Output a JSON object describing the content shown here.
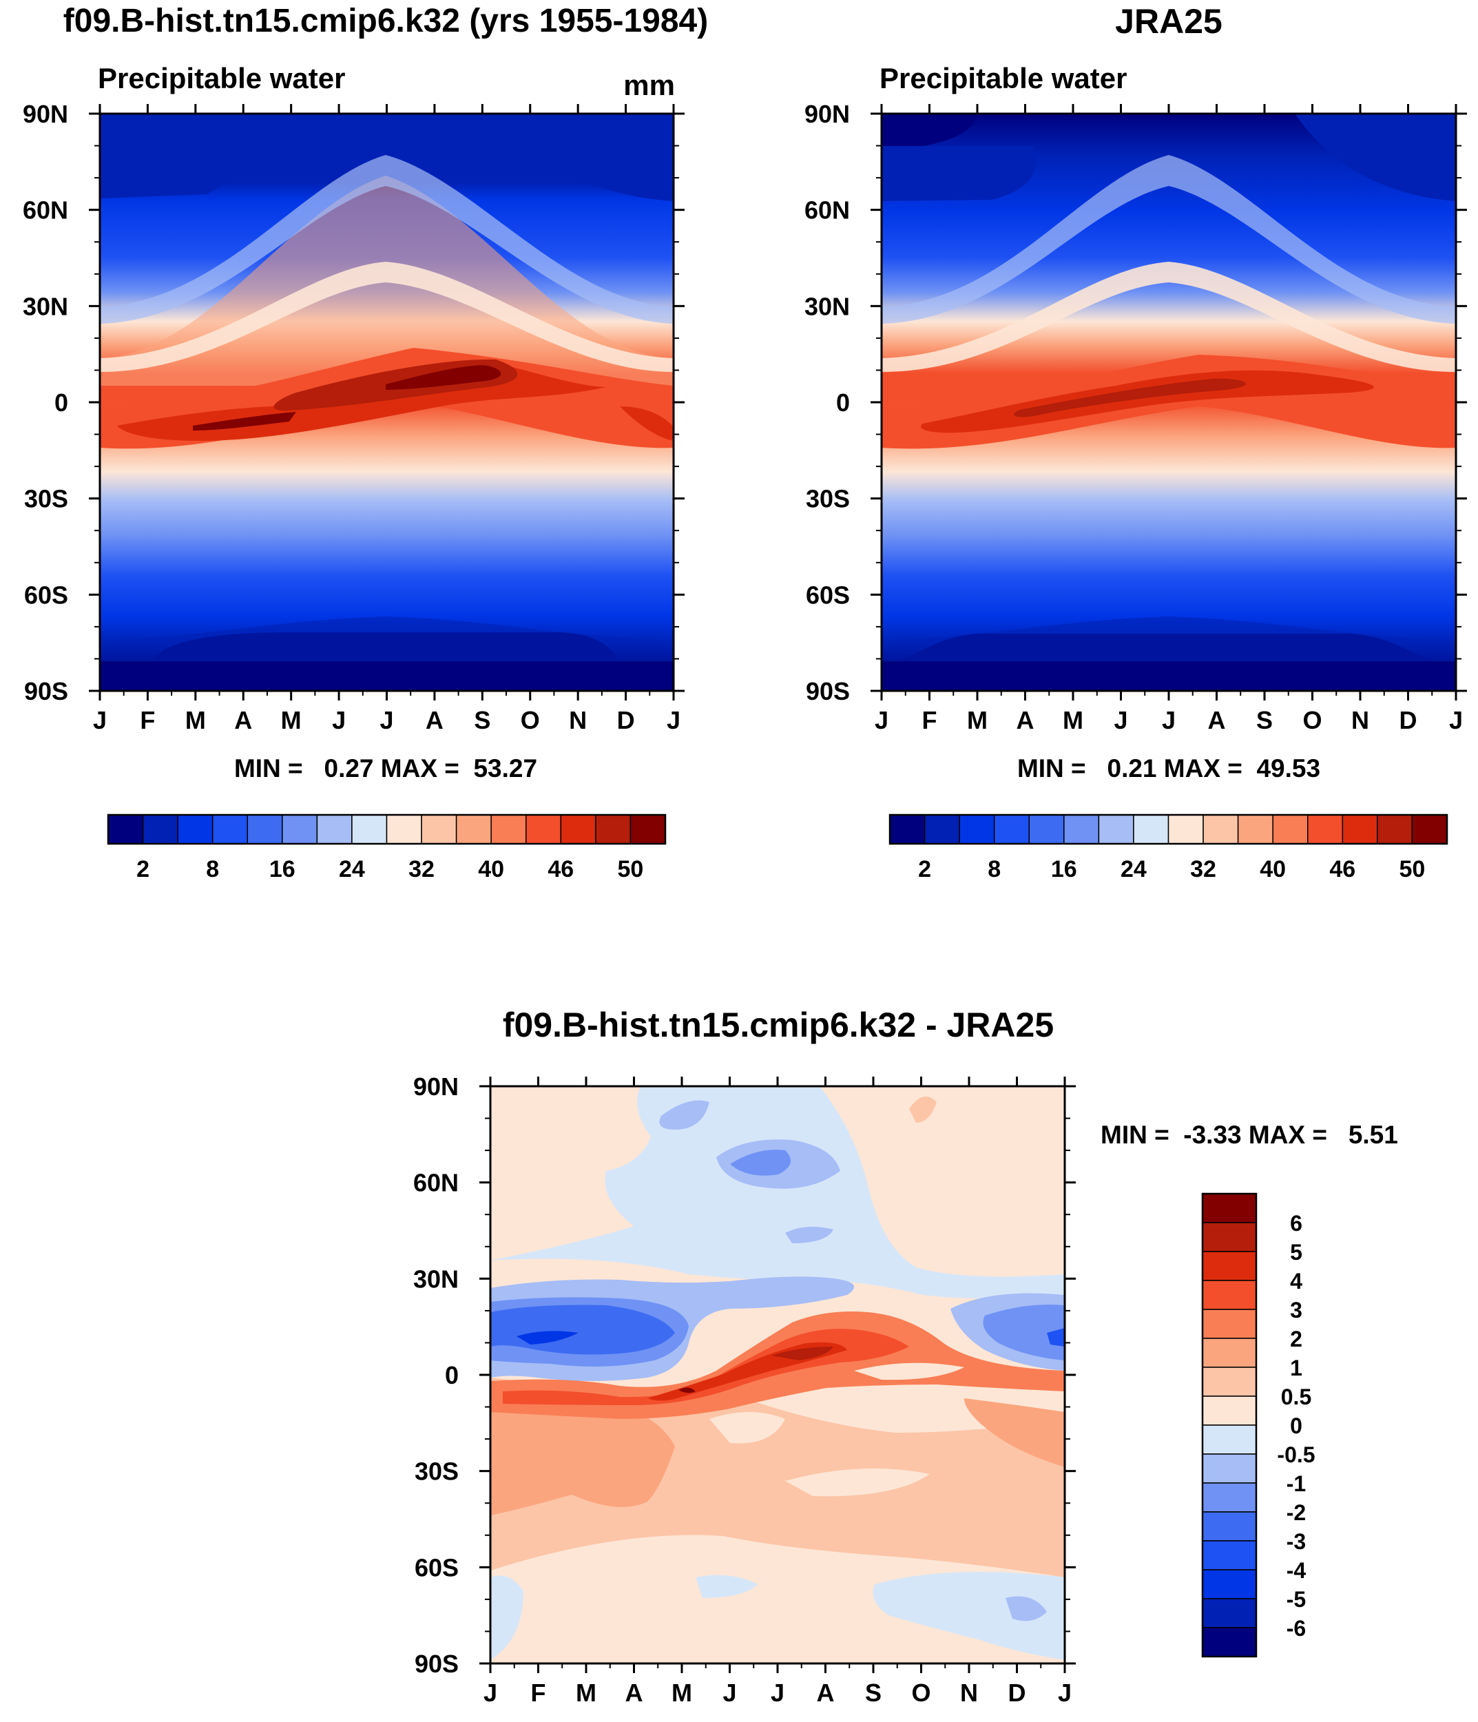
{
  "chart_data": [
    {
      "type": "contour",
      "title": "f09.B-hist.tn15.cmip6.k32 (yrs 1955-1984)",
      "subtitle": "Precipitable water",
      "units": "mm",
      "x_ticks": [
        "J",
        "F",
        "M",
        "A",
        "M",
        "J",
        "J",
        "A",
        "S",
        "O",
        "N",
        "D",
        "J"
      ],
      "y_ticks": [
        "90N",
        "60N",
        "30N",
        "0",
        "30S",
        "60S",
        "90S"
      ],
      "ylim": [
        -90,
        90
      ],
      "stats_text": "MIN =   0.27 MAX =  53.27",
      "min": 0.27,
      "max": 53.27,
      "max_lat_by_month": [
        -5,
        -5,
        -4,
        -2,
        2,
        5,
        9,
        10,
        10,
        8,
        5,
        1,
        -5
      ],
      "colorbar": {
        "labels": [
          "2",
          "8",
          "16",
          "24",
          "32",
          "40",
          "46",
          "50"
        ],
        "levels": [
          0,
          2,
          4,
          8,
          12,
          16,
          20,
          24,
          28,
          32,
          36,
          40,
          44,
          46,
          48,
          50
        ],
        "colors": [
          "#00007e",
          "#0021b4",
          "#0036e6",
          "#1f52f3",
          "#3d6cf2",
          "#6f92f4",
          "#a6bdf6",
          "#d6e6f9",
          "#fde6d6",
          "#fcc5a8",
          "#fba57f",
          "#f97e55",
          "#f34f2c",
          "#dd2c0d",
          "#b41e0a",
          "#820000"
        ]
      }
    },
    {
      "type": "contour",
      "title": "JRA25",
      "subtitle": "Precipitable water",
      "x_ticks": [
        "J",
        "F",
        "M",
        "A",
        "M",
        "J",
        "J",
        "A",
        "S",
        "O",
        "N",
        "D",
        "J"
      ],
      "y_ticks": [
        "90N",
        "60N",
        "30N",
        "0",
        "30S",
        "60S",
        "90S"
      ],
      "ylim": [
        -90,
        90
      ],
      "stats_text": "MIN =   0.21 MAX =  49.53",
      "min": 0.21,
      "max": 49.53,
      "max_lat_by_month": [
        -5,
        -4,
        -3,
        -1,
        2,
        5,
        8,
        9,
        8,
        6,
        4,
        0,
        -5
      ],
      "colorbar": {
        "labels": [
          "2",
          "8",
          "16",
          "24",
          "32",
          "40",
          "46",
          "50"
        ],
        "levels": [
          0,
          2,
          4,
          8,
          12,
          16,
          20,
          24,
          28,
          32,
          36,
          40,
          44,
          46,
          48,
          50
        ],
        "colors": [
          "#00007e",
          "#0021b4",
          "#0036e6",
          "#1f52f3",
          "#3d6cf2",
          "#6f92f4",
          "#a6bdf6",
          "#d6e6f9",
          "#fde6d6",
          "#fcc5a8",
          "#fba57f",
          "#f97e55",
          "#f34f2c",
          "#dd2c0d",
          "#b41e0a",
          "#820000"
        ]
      }
    },
    {
      "type": "contour",
      "title": "f09.B-hist.tn15.cmip6.k32 - JRA25",
      "x_ticks": [
        "J",
        "F",
        "M",
        "A",
        "M",
        "J",
        "J",
        "A",
        "S",
        "O",
        "N",
        "D",
        "J"
      ],
      "y_ticks": [
        "90N",
        "60N",
        "30N",
        "0",
        "30S",
        "60S",
        "90S"
      ],
      "ylim": [
        -90,
        90
      ],
      "stats_text": "MIN =  -3.33 MAX =   5.51",
      "min": -3.33,
      "max": 5.51,
      "colorbar": {
        "labels": [
          "6",
          "5",
          "4",
          "3",
          "2",
          "1",
          "0.5",
          "0",
          "-0.5",
          "-1",
          "-2",
          "-3",
          "-4",
          "-5",
          "-6"
        ],
        "colors": [
          "#820000",
          "#b41e0a",
          "#dd2c0d",
          "#f34f2c",
          "#f97e55",
          "#fba57f",
          "#fcc5a8",
          "#fde6d6",
          "#d6e6f9",
          "#a6bdf6",
          "#6f92f4",
          "#3d6cf2",
          "#1f52f3",
          "#0036e6",
          "#0021b4",
          "#00007e"
        ]
      }
    }
  ]
}
